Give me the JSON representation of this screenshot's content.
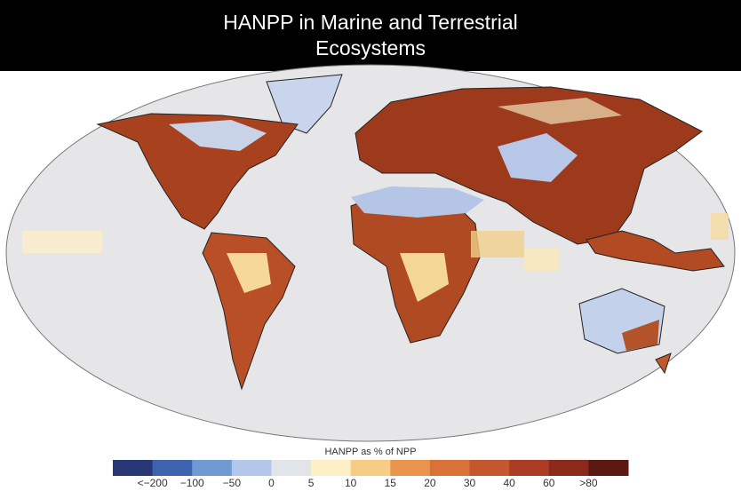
{
  "header": {
    "title": "HANPP in Marine and Terrestrial Ecosystems"
  },
  "legend": {
    "title": "HANPP as % of NPP",
    "colors": [
      "#283877",
      "#3e62ae",
      "#6f9ad2",
      "#b2c7ea",
      "#e1e5e9",
      "#fdf0c6",
      "#f7cd85",
      "#e8944c",
      "#d87238",
      "#c4572e",
      "#aa3d24",
      "#8b291b",
      "#5c1913"
    ],
    "labels": [
      "<−200",
      "−100",
      "−50",
      "0",
      "5",
      "10",
      "15",
      "20",
      "30",
      "40",
      "60",
      ">80"
    ]
  }
}
